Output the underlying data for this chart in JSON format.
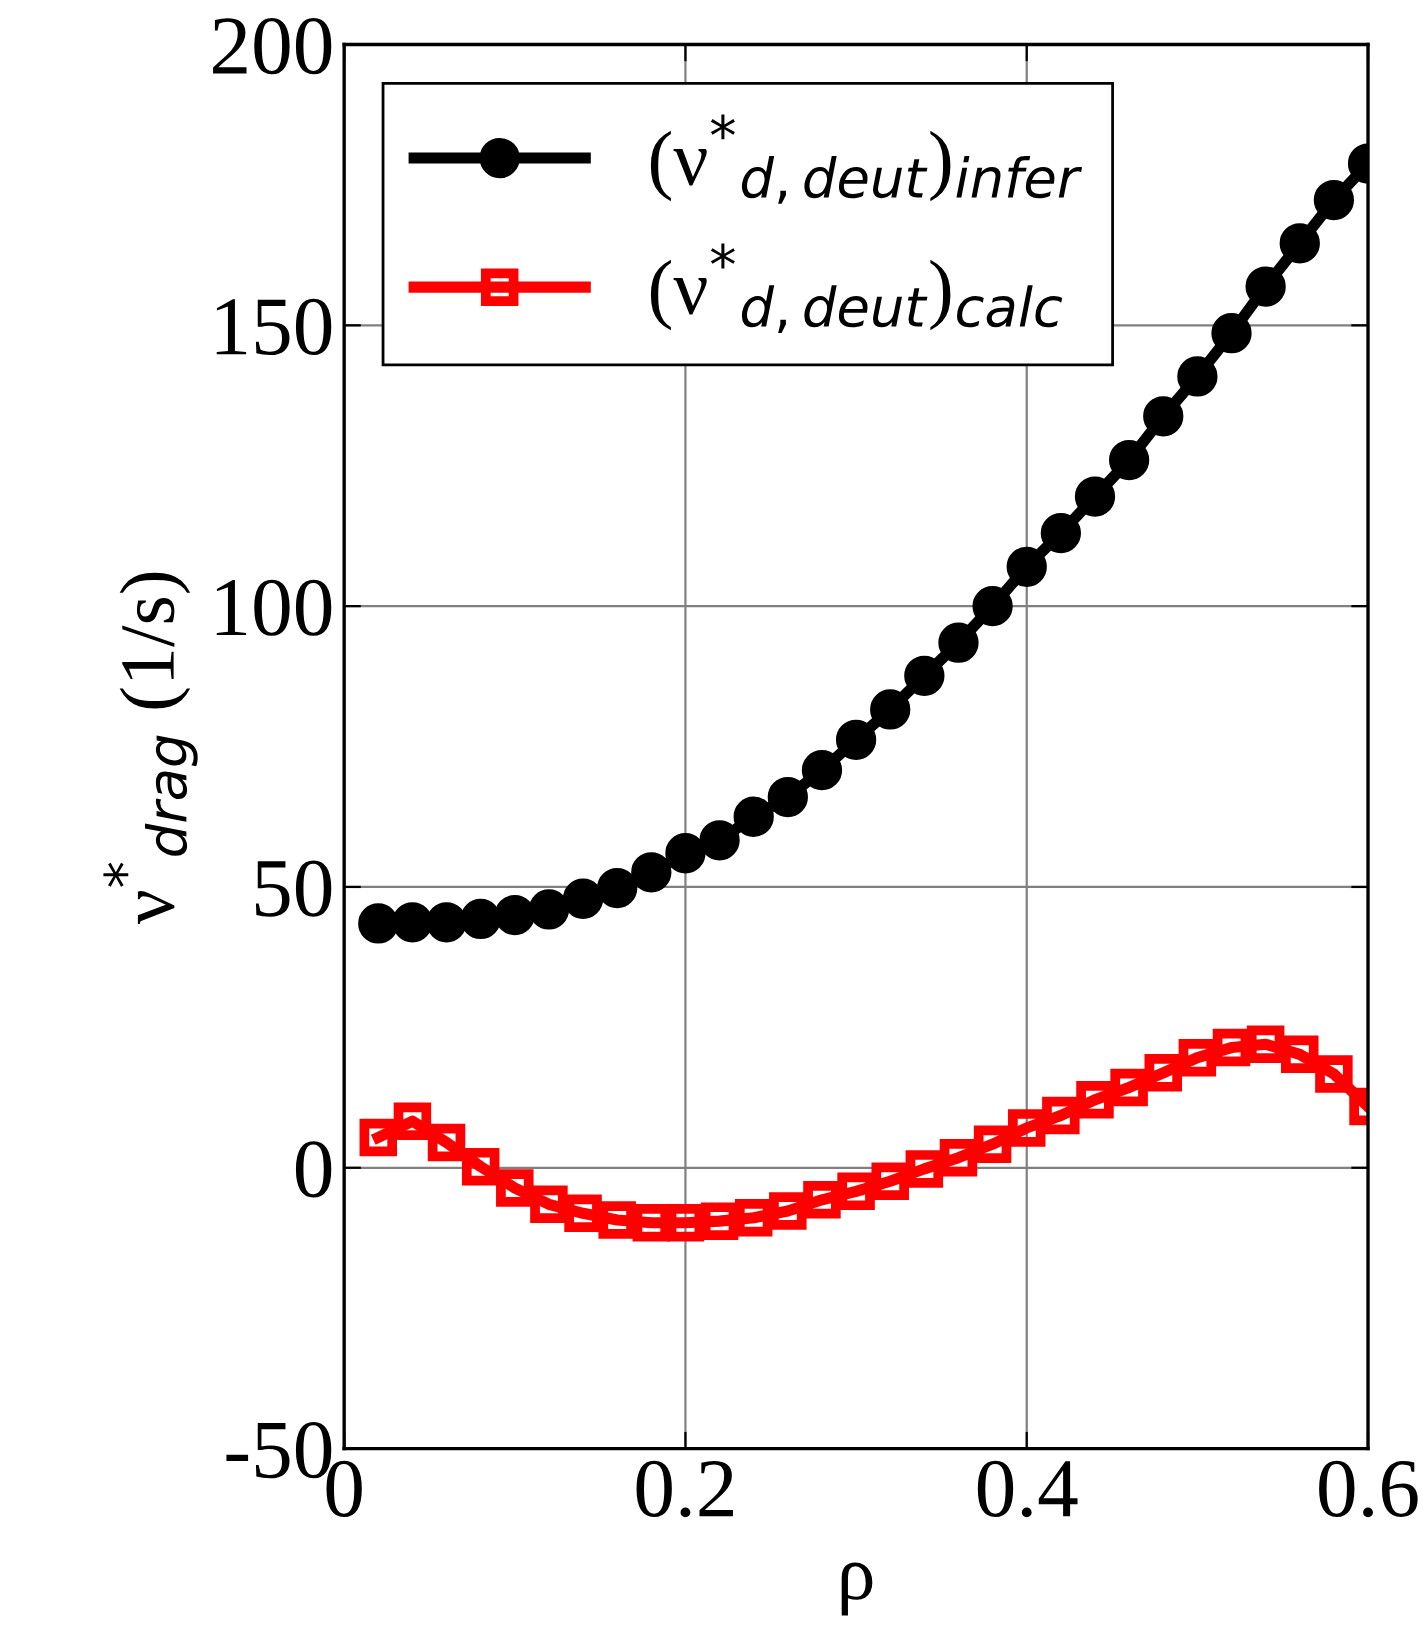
{
  "chart_data": {
    "type": "line",
    "xlabel": "ρ",
    "ylabel": "ν$^{*}$$_{drag}$ (1/s)",
    "x": [
      0.02,
      0.04,
      0.06,
      0.08,
      0.1,
      0.12,
      0.14,
      0.16,
      0.18,
      0.2,
      0.22,
      0.24,
      0.26,
      0.28,
      0.3,
      0.32,
      0.34,
      0.36,
      0.38,
      0.4,
      0.42,
      0.44,
      0.46,
      0.48,
      0.5,
      0.52,
      0.54,
      0.56,
      0.58,
      0.6
    ],
    "series": [
      {
        "name": "(ν$^{*}$$_{d,deut}$)$_{infer}$",
        "color": "#000000",
        "marker": "circle",
        "values": [
          43.5,
          43.7,
          43.7,
          44.3,
          45,
          46,
          47.9,
          49.8,
          52.6,
          56,
          58.3,
          62.5,
          66,
          70.8,
          76.2,
          81.6,
          87.6,
          93.5,
          100,
          107,
          113,
          119.5,
          126,
          133.8,
          140.9,
          148.6,
          156.9,
          164.6,
          172.3,
          178.8
        ]
      },
      {
        "name": "(ν$^{*}$$_{d,deut}$)$_{calc}$",
        "color": "#ff0000",
        "marker": "square",
        "values": [
          5.4,
          8.3,
          4.5,
          0.2,
          -3.6,
          -6.5,
          -8.1,
          -9.3,
          -9.8,
          -9.8,
          -9.5,
          -8.9,
          -7.7,
          -5.7,
          -4.2,
          -2.4,
          -0.2,
          1.8,
          4.2,
          7.1,
          9.3,
          12.1,
          14.3,
          16.9,
          19.6,
          21.4,
          22.0,
          20.2,
          16.7,
          10.9
        ]
      }
    ],
    "xlim": [
      0,
      0.6
    ],
    "xticks": [
      0,
      {
        "value": 0.2,
        "label": "0.2"
      },
      {
        "value": 0.4,
        "label": "0.4"
      },
      {
        "value": 0.6,
        "label": "0.6"
      }
    ],
    "ylim": [
      -50,
      200
    ],
    "yticks": [
      -50,
      0,
      50,
      100,
      150,
      200
    ],
    "grid": true,
    "legend": "top left",
    "line_style": "solid"
  }
}
